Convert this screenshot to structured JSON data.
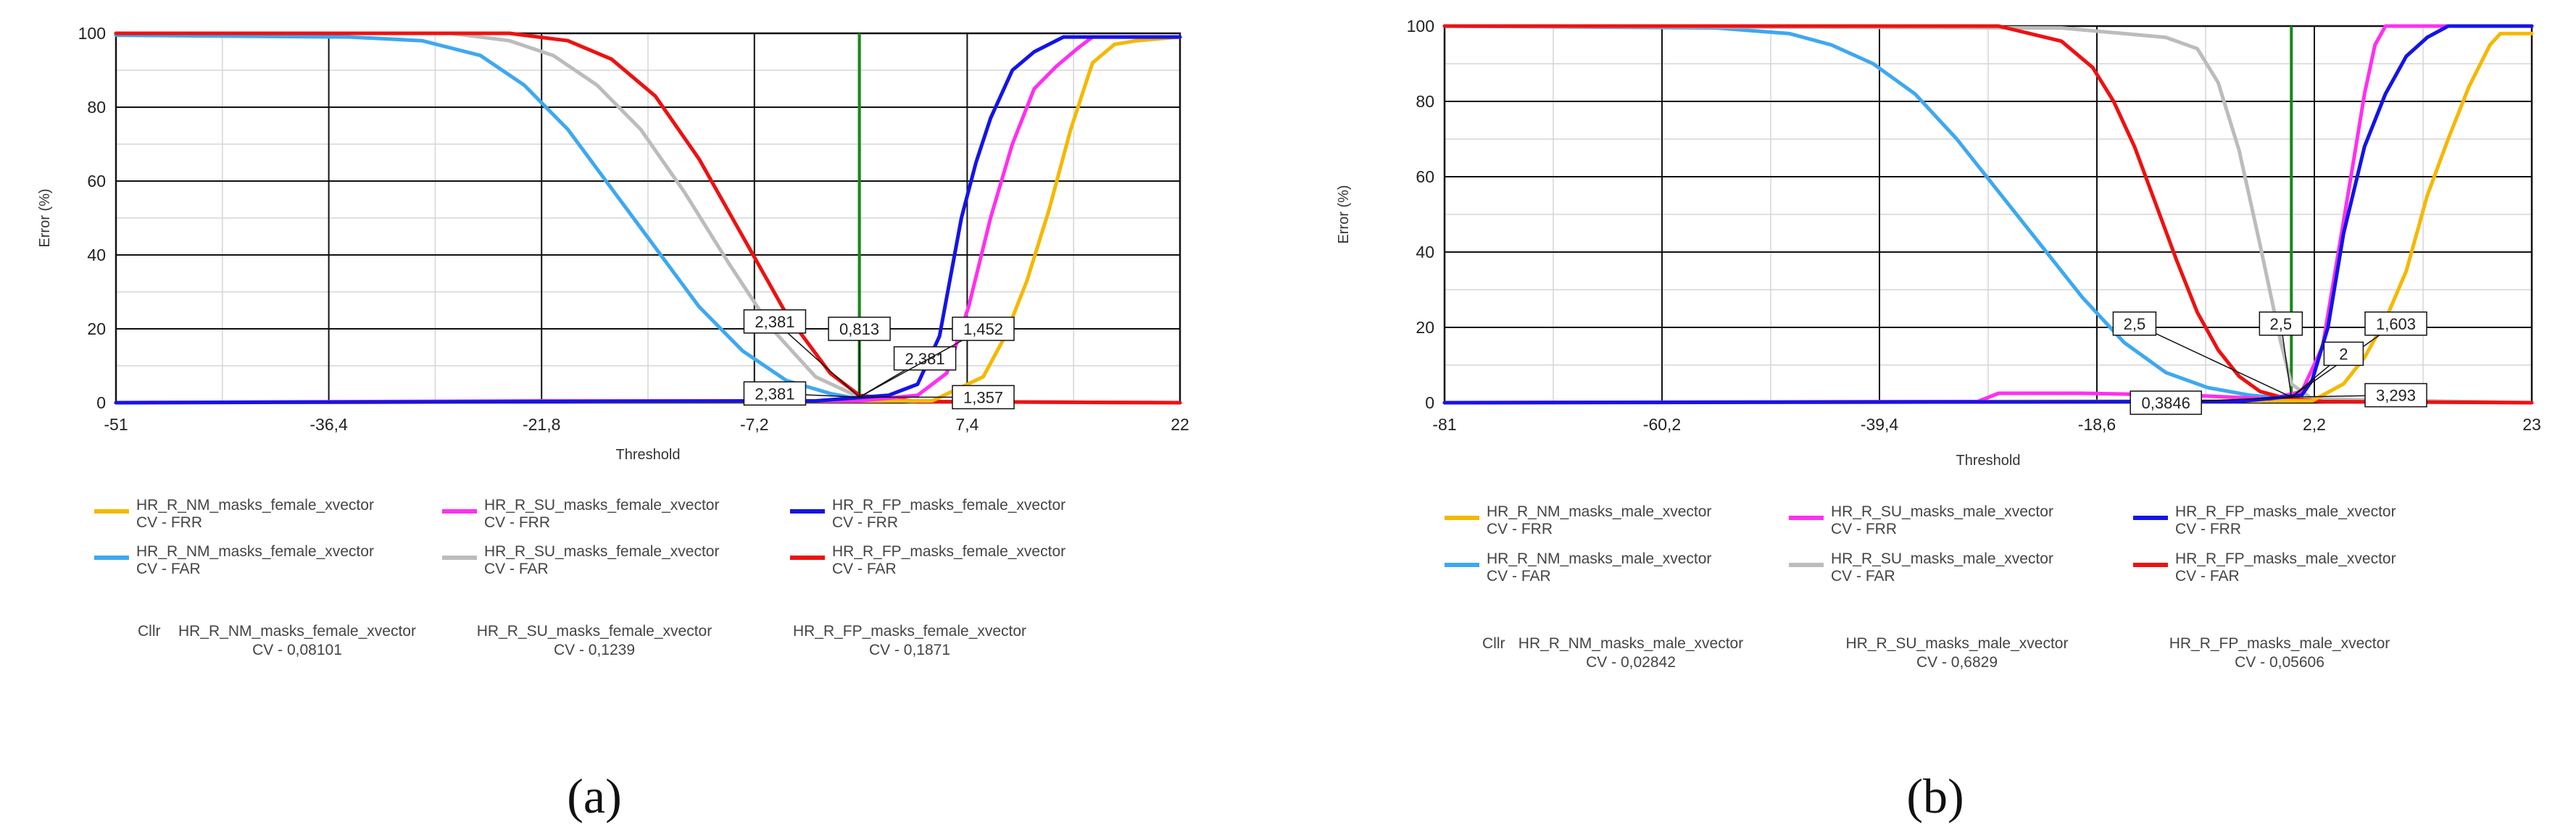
{
  "chart_data": [
    {
      "type": "line",
      "panel_label": "(a)",
      "xlabel": "Threshold",
      "ylabel": "Error (%)",
      "xlim": [
        -51,
        22
      ],
      "ylim": [
        0,
        100
      ],
      "x_ticks": [
        "-51",
        "-36,4",
        "-21,8",
        "-7,2",
        "7,4",
        "22"
      ],
      "x_tick_values": [
        -51,
        -36.4,
        -21.8,
        -7.2,
        7.4,
        22
      ],
      "y_ticks": [
        "0",
        "20",
        "40",
        "60",
        "80",
        "100"
      ],
      "y_tick_values": [
        0,
        20,
        40,
        60,
        80,
        100
      ],
      "grid": true,
      "threshold_line": 0,
      "colors": {
        "NM": "#f5b800",
        "SU": "#ff2ff0",
        "FP": "#1414e6",
        "NM_far": "#3ea8f0",
        "SU_far": "#bcbcbc",
        "FP_far": "#ee1111",
        "threshold": "#168a16"
      },
      "series": [
        {
          "name": "HR_R_NM_masks_female_xvector",
          "subname": "CV - FRR",
          "color": "#f5b800",
          "x": [
            -51,
            5,
            8.5,
            10,
            11.5,
            13,
            14.5,
            16,
            17.5,
            19,
            22
          ],
          "y": [
            0,
            0.5,
            7,
            18,
            33,
            52,
            74,
            92,
            97,
            98,
            99
          ]
        },
        {
          "name": "HR_R_SU_masks_female_xvector",
          "subname": "CV - FRR",
          "color": "#ff2ff0",
          "x": [
            -51,
            -22,
            0,
            4,
            6,
            7.5,
            9,
            10.5,
            12,
            13.5,
            15,
            16,
            22
          ],
          "y": [
            0,
            0.5,
            0.5,
            2,
            8,
            26,
            50,
            70,
            85,
            91,
            96,
            99,
            99
          ]
        },
        {
          "name": "HR_R_FP_masks_female_xvector",
          "subname": "CV - FRR",
          "color": "#1414e6",
          "x": [
            -51,
            -3,
            2,
            4,
            5.5,
            7,
            8,
            9,
            10.5,
            12,
            14,
            22
          ],
          "y": [
            0,
            0.5,
            2,
            5,
            18,
            50,
            65,
            77,
            90,
            95,
            99,
            99
          ]
        },
        {
          "name": "HR_R_NM_masks_female_xvector",
          "subname": "CV - FAR",
          "color": "#3ea8f0",
          "x": [
            -51,
            -35,
            -30,
            -26,
            -23,
            -20,
            -17,
            -14,
            -11,
            -8,
            -5,
            -2,
            0,
            4,
            22
          ],
          "y": [
            99.5,
            99,
            98,
            94,
            86,
            74,
            58,
            42,
            26,
            14,
            6,
            2.5,
            1,
            0.3,
            0
          ]
        },
        {
          "name": "HR_R_SU_masks_female_xvector",
          "subname": "CV - FAR",
          "color": "#bcbcbc",
          "x": [
            -51,
            -28,
            -24,
            -21,
            -18,
            -15,
            -12,
            -9,
            -6,
            -3,
            0,
            4,
            22
          ],
          "y": [
            100,
            100,
            98,
            94,
            86,
            74,
            57,
            38,
            20,
            7,
            1.5,
            0.3,
            0
          ]
        },
        {
          "name": "HR_R_FP_masks_female_xvector",
          "subname": "CV - FAR",
          "color": "#ee1111",
          "x": [
            -51,
            -24,
            -20,
            -17,
            -14,
            -11,
            -8,
            -5,
            -2,
            0,
            4,
            22
          ],
          "y": [
            100,
            100,
            98,
            93,
            83,
            66,
            45,
            24,
            8,
            2,
            0.3,
            0
          ]
        }
      ],
      "annotations": [
        {
          "label": "2,381",
          "at": [
            -5.8,
            22
          ],
          "to": [
            0,
            1.5
          ]
        },
        {
          "label": "0,813",
          "at": [
            0,
            20
          ],
          "to": [
            0,
            1.5
          ]
        },
        {
          "label": "2,381",
          "at": [
            4.5,
            12
          ],
          "to": [
            0,
            1.5
          ]
        },
        {
          "label": "1,452",
          "at": [
            8.5,
            20
          ],
          "to": [
            0,
            1.5
          ]
        },
        {
          "label": "2,381",
          "at": [
            -5.8,
            2.5
          ],
          "to": [
            0,
            1.5
          ]
        },
        {
          "label": "1,357",
          "at": [
            8.5,
            1.5
          ],
          "to": [
            0,
            1.5
          ]
        }
      ],
      "cllr": {
        "label": "Cllr",
        "items": [
          {
            "name": "HR_R_NM_masks_female_xvector",
            "value": "CV - 0,08101"
          },
          {
            "name": "HR_R_SU_masks_female_xvector",
            "value": "CV - 0,1239"
          },
          {
            "name": "HR_R_FP_masks_female_xvector",
            "value": "CV - 0,1871"
          }
        ]
      }
    },
    {
      "type": "line",
      "panel_label": "(b)",
      "xlabel": "Threshold",
      "ylabel": "Error (%)",
      "xlim": [
        -81,
        23
      ],
      "ylim": [
        0,
        100
      ],
      "x_ticks": [
        "-81",
        "-60,2",
        "-39,4",
        "-18,6",
        "2,2",
        "23"
      ],
      "x_tick_values": [
        -81,
        -60.2,
        -39.4,
        -18.6,
        2.2,
        23
      ],
      "y_ticks": [
        "0",
        "20",
        "40",
        "60",
        "80",
        "100"
      ],
      "y_tick_values": [
        0,
        20,
        40,
        60,
        80,
        100
      ],
      "grid": true,
      "threshold_line": 0,
      "series": [
        {
          "name": "HR_R_NM_masks_male_xvector",
          "subname": "CV - FRR",
          "color": "#f5b800",
          "x": [
            -81,
            2,
            5,
            7,
            9,
            11,
            13,
            15,
            17,
            19,
            20,
            23
          ],
          "y": [
            0,
            0.5,
            5,
            12,
            22,
            35,
            55,
            70,
            84,
            95,
            98,
            98
          ]
        },
        {
          "name": "HR_R_SU_masks_male_xvector",
          "subname": "CV - FRR",
          "color": "#ff2ff0",
          "x": [
            -81,
            -30,
            -28,
            -20,
            -10,
            -2,
            1,
            3,
            4.5,
            6,
            7,
            8,
            9,
            23
          ],
          "y": [
            0,
            0.3,
            2.5,
            2.5,
            2,
            1,
            3,
            15,
            40,
            65,
            82,
            95,
            100,
            100
          ]
        },
        {
          "name": "HR_R_FP_masks_male_xvector",
          "subname": "CV - FRR",
          "color": "#1414e6",
          "x": [
            -81,
            -5,
            1,
            2,
            3.5,
            5,
            7,
            9,
            11,
            13,
            15,
            23
          ],
          "y": [
            0,
            0.3,
            2,
            6,
            20,
            45,
            68,
            82,
            92,
            97,
            100,
            100
          ]
        },
        {
          "name": "HR_R_NM_masks_male_xvector",
          "subname": "CV - FAR",
          "color": "#3ea8f0",
          "x": [
            -81,
            -55,
            -48,
            -44,
            -40,
            -36,
            -32,
            -28,
            -24,
            -20,
            -16,
            -12,
            -8,
            -4,
            0,
            3,
            23
          ],
          "y": [
            100,
            99.5,
            98,
            95,
            90,
            82,
            70,
            56,
            42,
            28,
            16,
            8,
            4,
            2,
            1,
            0.5,
            0
          ]
        },
        {
          "name": "HR_R_SU_masks_male_xvector",
          "subname": "CV - FAR",
          "color": "#bcbcbc",
          "x": [
            -81,
            -22,
            -12,
            -9,
            -7,
            -5,
            -3,
            -1,
            0,
            2,
            23
          ],
          "y": [
            100,
            99.5,
            97,
            94,
            85,
            67,
            42,
            16,
            5,
            1,
            0
          ]
        },
        {
          "name": "HR_R_FP_masks_male_xvector",
          "subname": "CV - FAR",
          "color": "#ee1111",
          "x": [
            -81,
            -28,
            -22,
            -19,
            -17,
            -15,
            -13,
            -11,
            -9,
            -7,
            -5,
            -3,
            -1,
            1,
            3,
            23
          ],
          "y": [
            100,
            100,
            96,
            89,
            80,
            68,
            53,
            38,
            24,
            14,
            7,
            3,
            1.5,
            0.8,
            0.3,
            0
          ]
        }
      ],
      "annotations": [
        {
          "label": "2,5",
          "at": [
            -15,
            21
          ],
          "to": [
            0,
            1.5
          ]
        },
        {
          "label": "2,5",
          "at": [
            -1,
            21
          ],
          "to": [
            0,
            1.5
          ]
        },
        {
          "label": "1,603",
          "at": [
            10,
            21
          ],
          "to": [
            0,
            1.5
          ]
        },
        {
          "label": "2",
          "at": [
            5,
            13
          ],
          "to": [
            0,
            1.5
          ]
        },
        {
          "label": "0,3846",
          "at": [
            -12,
            0
          ],
          "to": [
            0,
            1.5
          ]
        },
        {
          "label": "3,293",
          "at": [
            10,
            2
          ],
          "to": [
            0,
            1.5
          ]
        }
      ],
      "cllr": {
        "label": "Cllr",
        "items": [
          {
            "name": "HR_R_NM_masks_male_xvector",
            "value": "CV - 0,02842"
          },
          {
            "name": "HR_R_SU_masks_male_xvector",
            "value": "CV - 0,6829"
          },
          {
            "name": "HR_R_FP_masks_male_xvector",
            "value": "CV - 0,05606"
          }
        ]
      }
    }
  ]
}
